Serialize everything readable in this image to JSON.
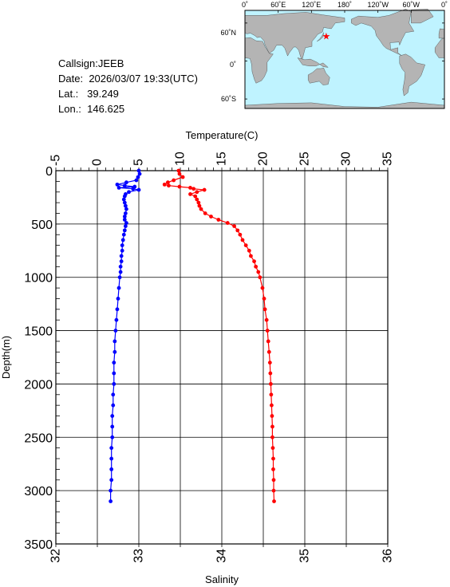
{
  "station": {
    "callsign": "Callsign:JEEB",
    "date_label": "Date:",
    "date_value": "2026/03/07 19:33(UTC)",
    "lat_label": "Lat.:",
    "lat_value": "39.249",
    "lon_label": "Lon.:",
    "lon_value": "146.625"
  },
  "map": {
    "lon_labels": [
      "0˚",
      "60˚E",
      "120˚E",
      "180˚",
      "120˚W",
      "60˚W",
      "0˚"
    ],
    "lat_labels": [
      "60˚N",
      "0˚",
      "60˚S"
    ],
    "ocean_color": "#bff3ff",
    "land_color": "#b4b4b4",
    "marker_color": "#ff0000",
    "marker_lon": 146.625,
    "marker_lat": 39.249
  },
  "chart_data": {
    "type": "scatter",
    "ylabel": "Depth(m)",
    "y_ticks": [
      0,
      500,
      1000,
      1500,
      2000,
      2500,
      3000,
      3500
    ],
    "ylim": [
      3500,
      0
    ],
    "top_axis": {
      "label": "Temperature(C)",
      "ticks": [
        -5,
        0,
        5,
        10,
        15,
        20,
        25,
        30,
        35
      ],
      "range": [
        -5,
        35
      ]
    },
    "bottom_axis": {
      "label": "Salinity",
      "ticks": [
        32,
        33,
        34,
        35,
        36
      ],
      "range": [
        32,
        36
      ]
    },
    "grid": true,
    "series": [
      {
        "axis": "temperature",
        "color": "#ff0000",
        "depth": [
          0,
          30,
          60,
          90,
          110,
          130,
          140,
          150,
          160,
          170,
          180,
          200,
          220,
          240,
          270,
          300,
          330,
          360,
          400,
          430,
          460,
          490,
          520,
          560,
          600,
          650,
          700,
          750,
          800,
          850,
          900,
          950,
          1000,
          1100,
          1200,
          1300,
          1400,
          1500,
          1600,
          1700,
          1800,
          1900,
          2000,
          2100,
          2200,
          2300,
          2400,
          2500,
          2600,
          2700,
          2800,
          2900,
          3000,
          3100
        ],
        "values": [
          9.8,
          9.9,
          10.3,
          9.2,
          8.5,
          8.1,
          8.6,
          9.9,
          11.2,
          11.6,
          12.9,
          12.0,
          11.2,
          11.8,
          12.0,
          12.2,
          12.3,
          12.5,
          13.0,
          13.7,
          14.6,
          15.7,
          16.5,
          16.9,
          17.2,
          17.5,
          17.9,
          18.3,
          18.5,
          18.9,
          19.1,
          19.4,
          19.6,
          19.9,
          20.1,
          20.2,
          20.4,
          20.5,
          20.6,
          20.7,
          20.8,
          20.85,
          20.9,
          20.95,
          21.0,
          21.05,
          21.1,
          21.1,
          21.15,
          21.2,
          21.2,
          21.25,
          21.25,
          21.3
        ]
      },
      {
        "axis": "salinity",
        "color": "#0000ff",
        "depth": [
          0,
          30,
          60,
          90,
          110,
          130,
          140,
          150,
          160,
          170,
          180,
          200,
          220,
          240,
          270,
          300,
          330,
          360,
          400,
          430,
          460,
          490,
          520,
          560,
          600,
          650,
          700,
          750,
          800,
          850,
          900,
          950,
          1000,
          1100,
          1200,
          1300,
          1400,
          1500,
          1600,
          1700,
          1800,
          1900,
          2000,
          2100,
          2200,
          2300,
          2400,
          2500,
          2600,
          2700,
          2800,
          2900,
          3000,
          3100
        ],
        "values": [
          33.0,
          33.01,
          32.99,
          32.97,
          32.85,
          32.74,
          32.83,
          32.95,
          32.76,
          32.93,
          33.0,
          32.88,
          32.84,
          32.83,
          32.82,
          32.83,
          32.84,
          32.85,
          32.84,
          32.83,
          32.83,
          32.85,
          32.84,
          32.83,
          32.82,
          32.81,
          32.8,
          32.8,
          32.79,
          32.79,
          32.78,
          32.78,
          32.77,
          32.76,
          32.75,
          32.74,
          32.73,
          32.72,
          32.71,
          32.71,
          32.7,
          32.7,
          32.7,
          32.69,
          32.69,
          32.68,
          32.68,
          32.68,
          32.67,
          32.67,
          32.67,
          32.67,
          32.66,
          32.66
        ]
      }
    ]
  }
}
